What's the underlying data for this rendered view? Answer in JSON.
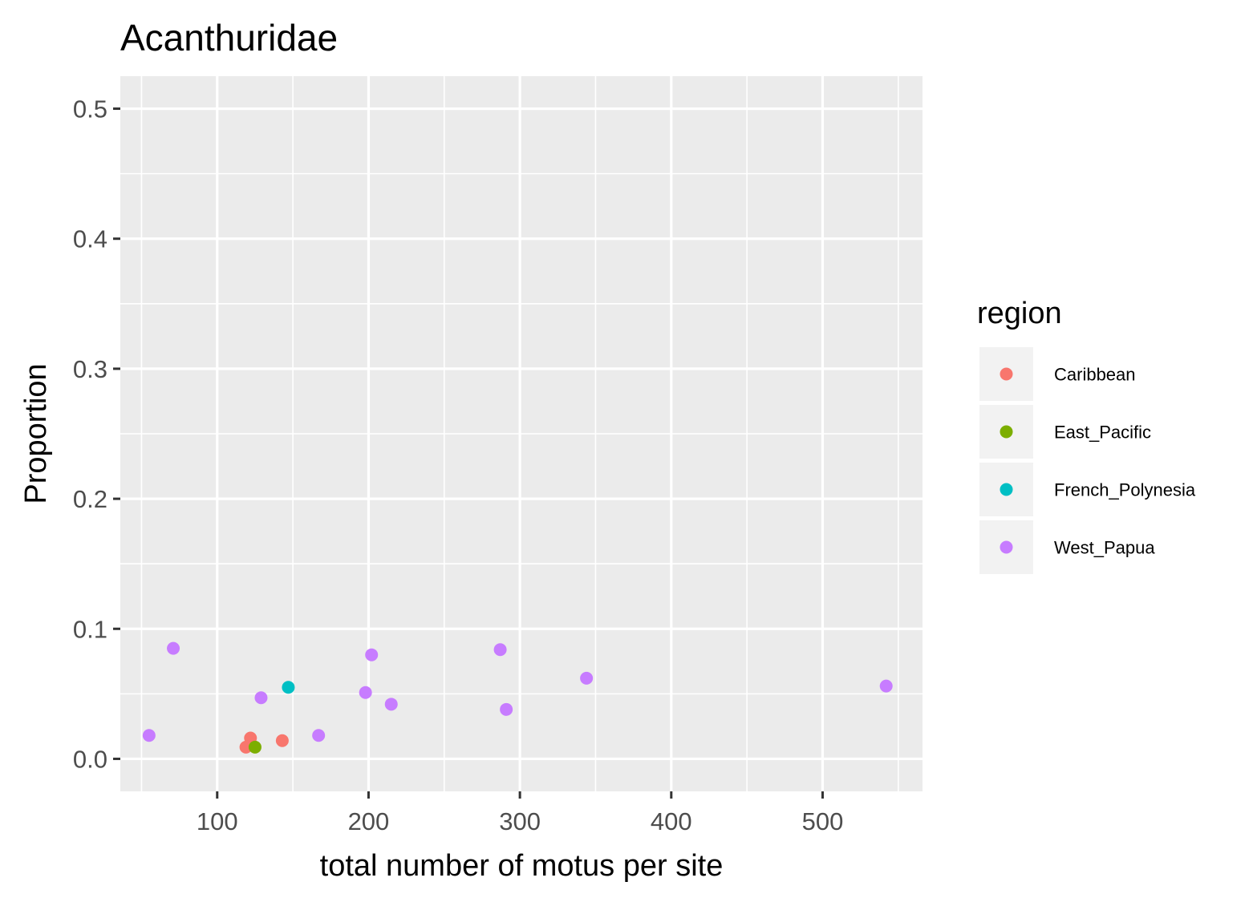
{
  "chart_data": {
    "type": "scatter",
    "title": "Acanthuridae",
    "xlabel": "total number of motus per site",
    "ylabel": "Proportion",
    "xlim": [
      36,
      566
    ],
    "ylim": [
      -0.025,
      0.525
    ],
    "x_ticks": [
      100,
      200,
      300,
      400,
      500
    ],
    "x_tick_labels": [
      "100",
      "200",
      "300",
      "400",
      "500"
    ],
    "y_ticks": [
      0.0,
      0.1,
      0.2,
      0.3,
      0.4,
      0.5
    ],
    "y_tick_labels": [
      "0.0",
      "0.1",
      "0.2",
      "0.3",
      "0.4",
      "0.5"
    ],
    "grid": true,
    "legend": {
      "title": "region",
      "position": "right"
    },
    "series": [
      {
        "name": "Caribbean",
        "color": "#F8766D",
        "points": [
          {
            "x": 119,
            "y": 0.009
          },
          {
            "x": 122,
            "y": 0.016
          },
          {
            "x": 143,
            "y": 0.014
          }
        ]
      },
      {
        "name": "East_Pacific",
        "color": "#7CAE00",
        "points": [
          {
            "x": 125,
            "y": 0.009
          }
        ]
      },
      {
        "name": "French_Polynesia",
        "color": "#00BFC4",
        "points": [
          {
            "x": 147,
            "y": 0.055
          }
        ]
      },
      {
        "name": "West_Papua",
        "color": "#C77CFF",
        "points": [
          {
            "x": 55,
            "y": 0.018
          },
          {
            "x": 71,
            "y": 0.085
          },
          {
            "x": 129,
            "y": 0.047
          },
          {
            "x": 167,
            "y": 0.018
          },
          {
            "x": 198,
            "y": 0.051
          },
          {
            "x": 202,
            "y": 0.08
          },
          {
            "x": 215,
            "y": 0.042
          },
          {
            "x": 287,
            "y": 0.084
          },
          {
            "x": 291,
            "y": 0.038
          },
          {
            "x": 344,
            "y": 0.062
          },
          {
            "x": 542,
            "y": 0.056
          }
        ]
      }
    ]
  }
}
